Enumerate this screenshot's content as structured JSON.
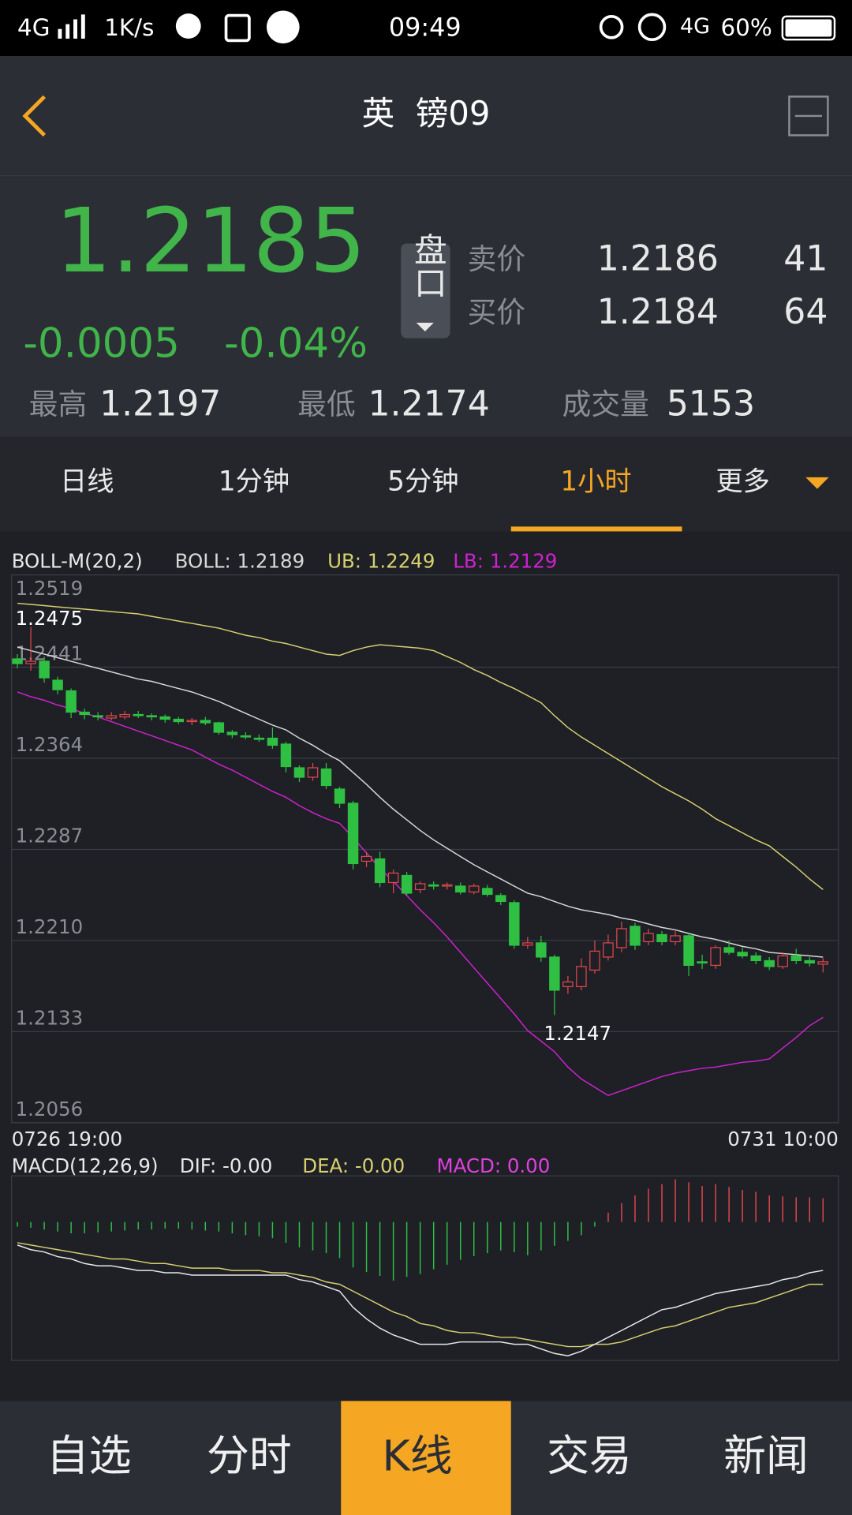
{
  "status_bar": {
    "network": "4G",
    "speed": "1K/s",
    "time": "09:49",
    "network_right": "4G",
    "battery": "60%"
  },
  "header": {
    "title": "英  镑09"
  },
  "quote": {
    "price": "1.2185",
    "change": "-0.0005",
    "change_pct": "-0.04%",
    "book_button": "盘口",
    "ask_label": "卖价",
    "ask_price": "1.2186",
    "ask_size": "41",
    "bid_label": "买价",
    "bid_price": "1.2184",
    "bid_size": "64",
    "high_label": "最高",
    "high": "1.2197",
    "low_label": "最低",
    "low": "1.2174",
    "volume_label": "成交量",
    "volume": "5153"
  },
  "tabs": {
    "items": [
      "日线",
      "1分钟",
      "5分钟",
      "1小时",
      "更多"
    ],
    "active": 3
  },
  "chart_data": {
    "type": "candlestick",
    "legend": {
      "name": "BOLL-M(20,2)",
      "boll": "BOLL: 1.2189",
      "ub": "UB: 1.2249",
      "lb": "LB: 1.2129"
    },
    "ylim": [
      1.2056,
      1.2519
    ],
    "yticks": [
      1.2519,
      1.2441,
      1.2364,
      1.2287,
      {
        "value": 1.221,
        "label": "1.2210"
      },
      1.2133,
      1.2056
    ],
    "grid": true,
    "x_labels": [
      "0726 19:00",
      "0731 10:00"
    ],
    "up_color": "#e0474c",
    "down_color": "#2fc043",
    "candles": [
      [
        1.2448,
        1.2444,
        1.2452,
        1.244
      ],
      [
        1.2444,
        1.2446,
        1.2475,
        1.2438
      ],
      [
        1.2446,
        1.2432,
        1.245,
        1.2428
      ],
      [
        1.243,
        1.2422,
        1.2433,
        1.2418
      ],
      [
        1.2421,
        1.2403,
        1.2423,
        1.2398
      ],
      [
        1.2403,
        1.2401,
        1.2406,
        1.2397
      ],
      [
        1.24,
        1.2399,
        1.2403,
        1.2396
      ],
      [
        1.2398,
        1.24,
        1.2403,
        1.2396
      ],
      [
        1.2399,
        1.2401,
        1.2404,
        1.2397
      ],
      [
        1.2401,
        1.24,
        1.2404,
        1.2398
      ],
      [
        1.24,
        1.2399,
        1.2402,
        1.2396
      ],
      [
        1.2399,
        1.2397,
        1.2401,
        1.2394
      ],
      [
        1.2397,
        1.2395,
        1.2399,
        1.2393
      ],
      [
        1.2395,
        1.2396,
        1.2398,
        1.2392
      ],
      [
        1.2396,
        1.2394,
        1.2399,
        1.2392
      ],
      [
        1.2394,
        1.2386,
        1.2395,
        1.2384
      ],
      [
        1.2386,
        1.2384,
        1.2388,
        1.2381
      ],
      [
        1.2383,
        1.2382,
        1.2386,
        1.238
      ],
      [
        1.2381,
        1.238,
        1.2384,
        1.2378
      ],
      [
        1.2381,
        1.2375,
        1.239,
        1.2372
      ],
      [
        1.2376,
        1.2357,
        1.2378,
        1.2352
      ],
      [
        1.2356,
        1.2348,
        1.2358,
        1.2344
      ],
      [
        1.2348,
        1.2356,
        1.236,
        1.2345
      ],
      [
        1.2355,
        1.2341,
        1.236,
        1.2338
      ],
      [
        1.2338,
        1.2326,
        1.234,
        1.2322
      ],
      [
        1.2326,
        1.2275,
        1.2328,
        1.227
      ],
      [
        1.2277,
        1.2281,
        1.2285,
        1.2272
      ],
      [
        1.2279,
        1.2259,
        1.2285,
        1.2255
      ],
      [
        1.2259,
        1.2267,
        1.227,
        1.225
      ],
      [
        1.2265,
        1.225,
        1.2268,
        1.2248
      ],
      [
        1.2253,
        1.2258,
        1.226,
        1.225
      ],
      [
        1.2257,
        1.2256,
        1.226,
        1.2253
      ],
      [
        1.2256,
        1.2257,
        1.2259,
        1.2253
      ],
      [
        1.2256,
        1.2251,
        1.2259,
        1.2249
      ],
      [
        1.2251,
        1.2256,
        1.2258,
        1.2249
      ],
      [
        1.2254,
        1.2249,
        1.2257,
        1.2247
      ],
      [
        1.2248,
        1.2243,
        1.225,
        1.224
      ],
      [
        1.2242,
        1.2206,
        1.2244,
        1.2203
      ],
      [
        1.2206,
        1.2208,
        1.2213,
        1.2203
      ],
      [
        1.2208,
        1.2196,
        1.2214,
        1.2192
      ],
      [
        1.2196,
        1.2168,
        1.2198,
        1.2147
      ],
      [
        1.2171,
        1.2175,
        1.218,
        1.2165
      ],
      [
        1.2171,
        1.2188,
        1.2195,
        1.2168
      ],
      [
        1.2185,
        1.2201,
        1.221,
        1.2182
      ],
      [
        1.2196,
        1.2208,
        1.2215,
        1.2193
      ],
      [
        1.2204,
        1.222,
        1.2226,
        1.22
      ],
      [
        1.2222,
        1.2206,
        1.2225,
        1.2202
      ],
      [
        1.2209,
        1.2216,
        1.222,
        1.2206
      ],
      [
        1.2215,
        1.2209,
        1.2218,
        1.2206
      ],
      [
        1.2209,
        1.2214,
        1.2218,
        1.2206
      ],
      [
        1.2214,
        1.2189,
        1.2216,
        1.218
      ],
      [
        1.2192,
        1.2191,
        1.2198,
        1.2186
      ],
      [
        1.2189,
        1.2204,
        1.2206,
        1.2186
      ],
      [
        1.2204,
        1.22,
        1.221,
        1.2198
      ],
      [
        1.22,
        1.2197,
        1.2204,
        1.2195
      ],
      [
        1.2197,
        1.2193,
        1.22,
        1.219
      ],
      [
        1.2193,
        1.2188,
        1.2196,
        1.2185
      ],
      [
        1.2188,
        1.2197,
        1.22,
        1.2186
      ],
      [
        1.2197,
        1.2193,
        1.2203,
        1.219
      ],
      [
        1.2193,
        1.2191,
        1.2196,
        1.2188
      ],
      [
        1.219,
        1.2192,
        1.2195,
        1.2183
      ]
    ],
    "high_label_candle": 1,
    "low_label_candle": 40,
    "boll": {
      "mid_color": "#d8d8d8",
      "upper_color": "#d8d070",
      "lower_color": "#d020d0",
      "mid": [
        1.2458,
        1.2455,
        1.2452,
        1.2449,
        1.2446,
        1.2443,
        1.244,
        1.2437,
        1.2434,
        1.2431,
        1.2429,
        1.2426,
        1.2423,
        1.242,
        1.2416,
        1.2412,
        1.2407,
        1.2402,
        1.2397,
        1.2392,
        1.2388,
        1.2381,
        1.2375,
        1.2368,
        1.2362,
        1.2352,
        1.2342,
        1.2331,
        1.2321,
        1.2312,
        1.2303,
        1.2295,
        1.2288,
        1.2281,
        1.2274,
        1.2268,
        1.2262,
        1.2256,
        1.225,
        1.2247,
        1.2243,
        1.2239,
        1.2236,
        1.2234,
        1.2232,
        1.2229,
        1.2227,
        1.2224,
        1.2221,
        1.2219,
        1.2216,
        1.2213,
        1.2211,
        1.2208,
        1.2205,
        1.2203,
        1.22,
        1.2199,
        1.2198,
        1.2197,
        1.2196
      ],
      "upper": [
        1.2495,
        1.2494,
        1.2493,
        1.2492,
        1.2491,
        1.249,
        1.2489,
        1.2488,
        1.2487,
        1.2486,
        1.2484,
        1.2482,
        1.248,
        1.2478,
        1.2476,
        1.2474,
        1.2471,
        1.2468,
        1.2466,
        1.2463,
        1.2461,
        1.2458,
        1.2455,
        1.2452,
        1.2451,
        1.2455,
        1.2458,
        1.246,
        1.2459,
        1.2458,
        1.2457,
        1.2455,
        1.245,
        1.2445,
        1.2439,
        1.2434,
        1.2428,
        1.2423,
        1.2417,
        1.2411,
        1.24,
        1.239,
        1.2382,
        1.2375,
        1.2368,
        1.2361,
        1.2354,
        1.2347,
        1.234,
        1.2334,
        1.2328,
        1.2321,
        1.2313,
        1.2307,
        1.2301,
        1.2295,
        1.229,
        1.2281,
        1.2272,
        1.2262,
        1.2253
      ],
      "lower": [
        1.242,
        1.2416,
        1.2413,
        1.2409,
        1.2406,
        1.2402,
        1.2399,
        1.2395,
        1.2391,
        1.2387,
        1.2383,
        1.2379,
        1.2375,
        1.2371,
        1.2365,
        1.2359,
        1.2354,
        1.2348,
        1.2342,
        1.2336,
        1.2331,
        1.2324,
        1.2318,
        1.2313,
        1.2309,
        1.2297,
        1.2284,
        1.2271,
        1.226,
        1.2248,
        1.2236,
        1.2225,
        1.2213,
        1.22,
        1.2187,
        1.2174,
        1.2161,
        1.2148,
        1.2134,
        1.2125,
        1.2116,
        1.2103,
        1.2093,
        1.2086,
        1.2079,
        1.2083,
        1.2087,
        1.2091,
        1.2095,
        1.2098,
        1.21,
        1.2102,
        1.2103,
        1.2105,
        1.2107,
        1.2108,
        1.211,
        1.2119,
        1.2128,
        1.2138,
        1.2145
      ]
    },
    "macd": {
      "legend": {
        "name": "MACD(12,26,9)",
        "dif": "DIF: -0.00",
        "dea": "DEA: -0.00",
        "macd": "MACD: 0.00"
      },
      "ylim": [
        -0.006,
        0.002
      ],
      "dif_color": "#e8e8e8",
      "dea_color": "#d8d070",
      "macd_color": "#e040e0",
      "histogram": [
        -0.0002,
        -0.00025,
        -0.00033,
        -0.00041,
        -0.00049,
        -0.00049,
        -0.00045,
        -0.00041,
        -0.00037,
        -0.00033,
        -0.00033,
        -0.00029,
        -0.00029,
        -0.00033,
        -0.00037,
        -0.00041,
        -0.00049,
        -0.00057,
        -0.00062,
        -0.0007,
        -0.0009,
        -0.0011,
        -0.00123,
        -0.00135,
        -0.00156,
        -0.00197,
        -0.00217,
        -0.00234,
        -0.00254,
        -0.00238,
        -0.00226,
        -0.00205,
        -0.00185,
        -0.00164,
        -0.00148,
        -0.00135,
        -0.00123,
        -0.00131,
        -0.00144,
        -0.00123,
        -0.00103,
        -0.00082,
        -0.00057,
        -0.0002,
        0.00041,
        0.00082,
        0.00115,
        0.00144,
        0.00164,
        0.00185,
        0.00172,
        0.00156,
        0.00164,
        0.00152,
        0.00139,
        0.00131,
        0.00115,
        0.00111,
        0.00107,
        0.00107,
        0.00103
      ],
      "dif": [
        -0.001,
        -0.0012,
        -0.0013,
        -0.0015,
        -0.0016,
        -0.0018,
        -0.0019,
        -0.0019,
        -0.002,
        -0.0021,
        -0.0021,
        -0.0022,
        -0.0022,
        -0.0023,
        -0.0023,
        -0.0023,
        -0.0023,
        -0.0023,
        -0.0023,
        -0.0023,
        -0.0023,
        -0.0025,
        -0.0026,
        -0.0028,
        -0.003,
        -0.0037,
        -0.0042,
        -0.0046,
        -0.0049,
        -0.0051,
        -0.0053,
        -0.0053,
        -0.0053,
        -0.0052,
        -0.0052,
        -0.0052,
        -0.0052,
        -0.0053,
        -0.0053,
        -0.0055,
        -0.0057,
        -0.0058,
        -0.0056,
        -0.0053,
        -0.005,
        -0.0047,
        -0.0044,
        -0.0041,
        -0.0038,
        -0.0037,
        -0.0035,
        -0.0033,
        -0.0031,
        -0.003,
        -0.0029,
        -0.0028,
        -0.0027,
        -0.0025,
        -0.0024,
        -0.0022,
        -0.0021
      ],
      "dea": [
        -0.0009,
        -0.001,
        -0.0011,
        -0.0012,
        -0.0013,
        -0.0014,
        -0.0015,
        -0.0016,
        -0.0016,
        -0.0017,
        -0.0018,
        -0.0018,
        -0.0019,
        -0.002,
        -0.002,
        -0.002,
        -0.0021,
        -0.0021,
        -0.0021,
        -0.0022,
        -0.0022,
        -0.0023,
        -0.0024,
        -0.0026,
        -0.0027,
        -0.003,
        -0.0033,
        -0.0036,
        -0.0039,
        -0.0041,
        -0.0044,
        -0.0045,
        -0.0047,
        -0.0048,
        -0.0048,
        -0.0049,
        -0.005,
        -0.005,
        -0.0051,
        -0.0052,
        -0.0053,
        -0.0054,
        -0.0054,
        -0.0053,
        -0.0053,
        -0.0052,
        -0.005,
        -0.0048,
        -0.0046,
        -0.0045,
        -0.0043,
        -0.0041,
        -0.0039,
        -0.0037,
        -0.0036,
        -0.0035,
        -0.0033,
        -0.0031,
        -0.0029,
        -0.0027,
        -0.0027
      ]
    }
  },
  "nav": {
    "items": [
      "自选",
      "分时",
      "K线",
      "交易",
      "新闻"
    ],
    "active": 2
  }
}
